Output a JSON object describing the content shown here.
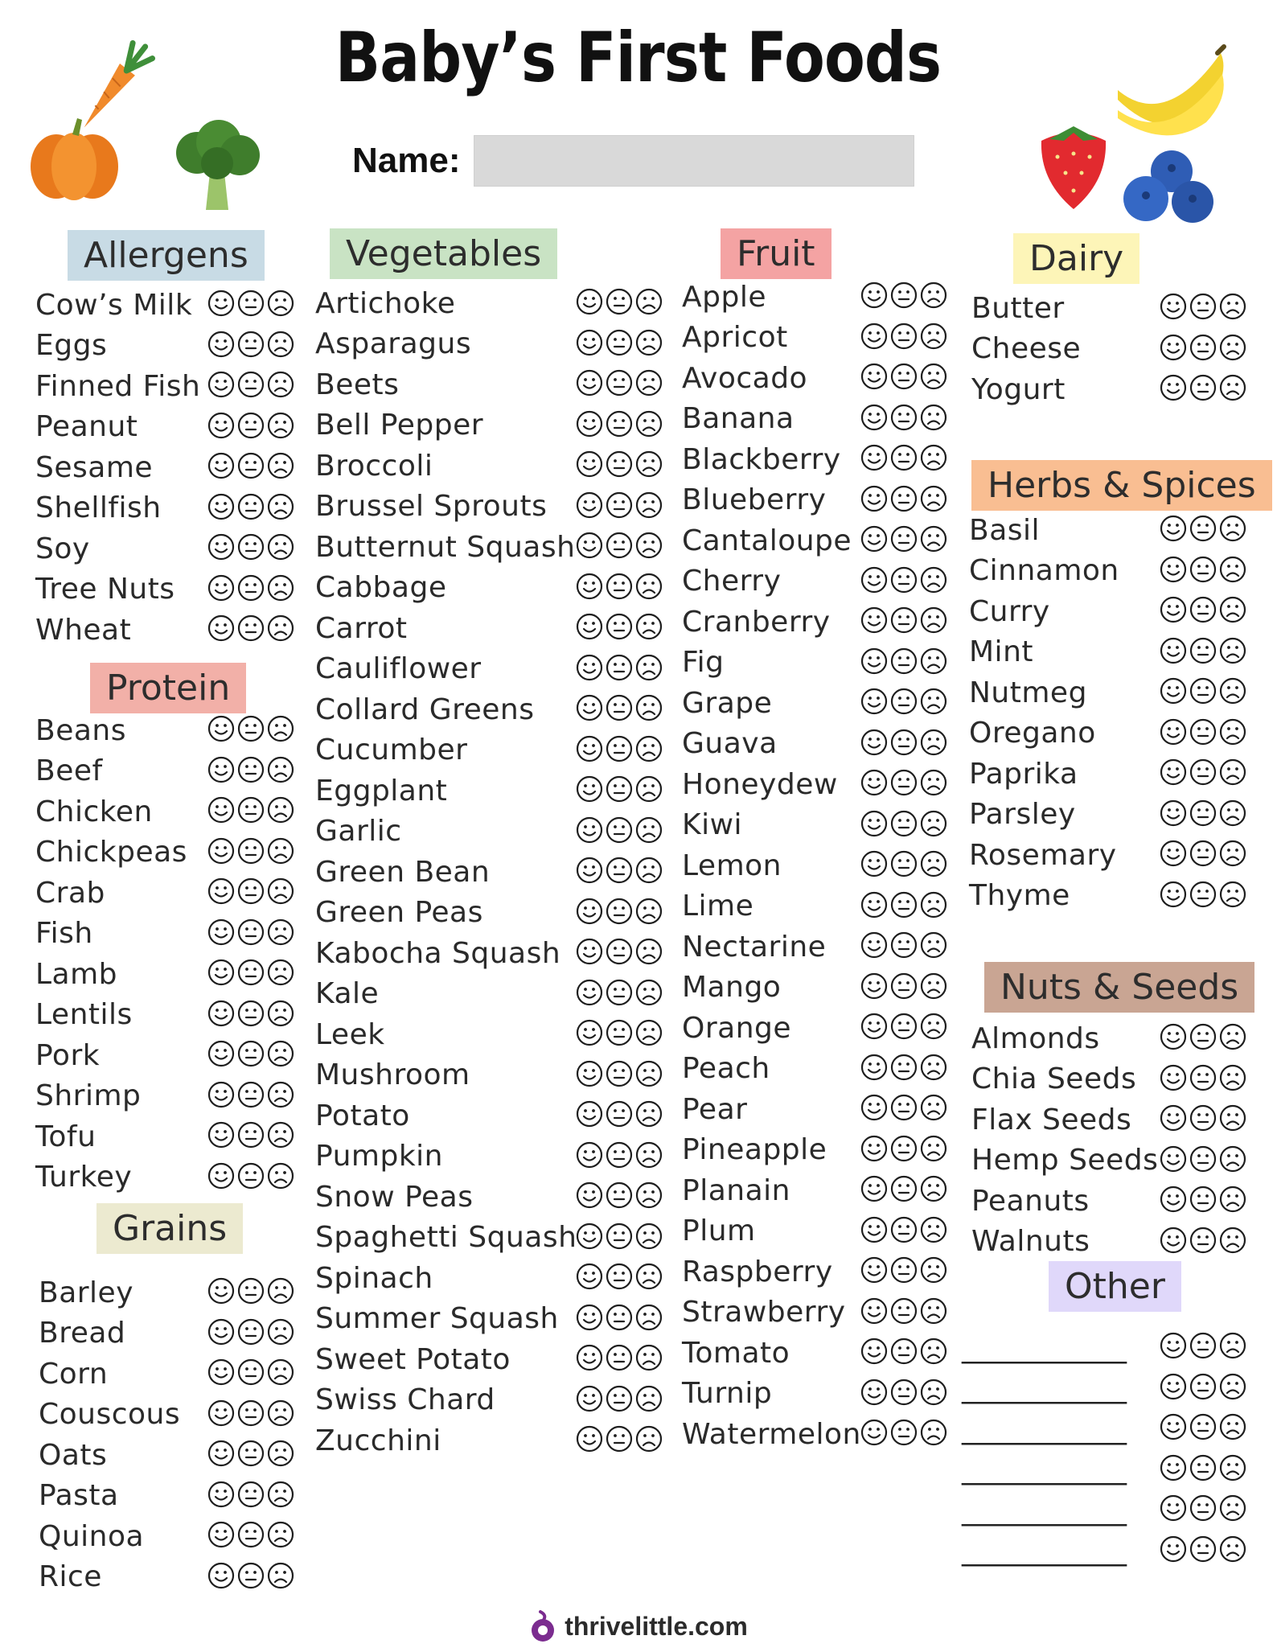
{
  "title": "Baby’s First Foods",
  "name_label": "Name:",
  "footer": "thrivelittle.com",
  "sections": {
    "allergens": {
      "heading": "Allergens",
      "color": "#c8dbe5",
      "items": [
        "Cow’s Milk",
        "Eggs",
        "Finned Fish",
        "Peanut",
        "Sesame",
        "Shellfish",
        "Soy",
        "Tree Nuts",
        "Wheat"
      ]
    },
    "protein": {
      "heading": "Protein",
      "color": "#f2b0a8",
      "items": [
        "Beans",
        "Beef",
        "Chicken",
        "Chickpeas",
        "Crab",
        "Fish",
        "Lamb",
        "Lentils",
        "Pork",
        "Shrimp",
        "Tofu",
        "Turkey"
      ]
    },
    "grains": {
      "heading": "Grains",
      "color": "#ecead0",
      "items": [
        "Barley",
        "Bread",
        "Corn",
        "Couscous",
        "Oats",
        "Pasta",
        "Quinoa",
        "Rice"
      ]
    },
    "vegetables": {
      "heading": "Vegetables",
      "color": "#c9e3c4",
      "items": [
        "Artichoke",
        "Asparagus",
        "Beets",
        "Bell Pepper",
        "Broccoli",
        "Brussel Sprouts",
        "Butternut Squash",
        "Cabbage",
        "Carrot",
        "Cauliflower",
        "Collard Greens",
        "Cucumber",
        "Eggplant",
        "Garlic",
        "Green Bean",
        "Green Peas",
        "Kabocha Squash",
        "Kale",
        "Leek",
        "Mushroom",
        "Potato",
        "Pumpkin",
        "Snow Peas",
        "Spaghetti Squash",
        "Spinach",
        "Summer Squash",
        "Sweet Potato",
        "Swiss Chard",
        "Zucchini"
      ]
    },
    "fruit": {
      "heading": "Fruit",
      "color": "#f4a3a3",
      "items": [
        "Apple",
        "Apricot",
        "Avocado",
        "Banana",
        "Blackberry",
        "Blueberry",
        "Cantaloupe",
        "Cherry",
        "Cranberry",
        "Fig",
        "Grape",
        "Guava",
        "Honeydew",
        "Kiwi",
        "Lemon",
        "Lime",
        "Nectarine",
        "Mango",
        "Orange",
        "Peach",
        "Pear",
        "Pineapple",
        "Planain",
        "Plum",
        "Raspberry",
        "Strawberry",
        "Tomato",
        "Turnip",
        "Watermelon"
      ]
    },
    "dairy": {
      "heading": "Dairy",
      "color": "#fdf5b8",
      "items": [
        "Butter",
        "Cheese",
        "Yogurt"
      ]
    },
    "herbs": {
      "heading": "Herbs & Spices",
      "color": "#f9be92",
      "items": [
        "Basil",
        "Cinnamon",
        "Curry",
        "Mint",
        "Nutmeg",
        "Oregano",
        "Paprika",
        "Parsley",
        "Rosemary",
        "Thyme"
      ]
    },
    "nuts": {
      "heading": "Nuts & Seeds",
      "color": "#c9a593",
      "items": [
        "Almonds",
        "Chia Seeds",
        "Flax Seeds",
        "Hemp Seeds",
        "Peanuts",
        "Walnuts"
      ]
    },
    "other": {
      "heading": "Other",
      "color": "#e0d8fa",
      "items": [
        "____________",
        "____________",
        "____________",
        "____________",
        "____________",
        "____________"
      ]
    }
  },
  "icons": [
    "carrot-icon",
    "pumpkin-icon",
    "broccoli-icon",
    "strawberry-icon",
    "banana-icon",
    "blueberry-icon",
    "happy-face-icon",
    "neutral-face-icon",
    "sad-face-icon",
    "logo-icon"
  ]
}
